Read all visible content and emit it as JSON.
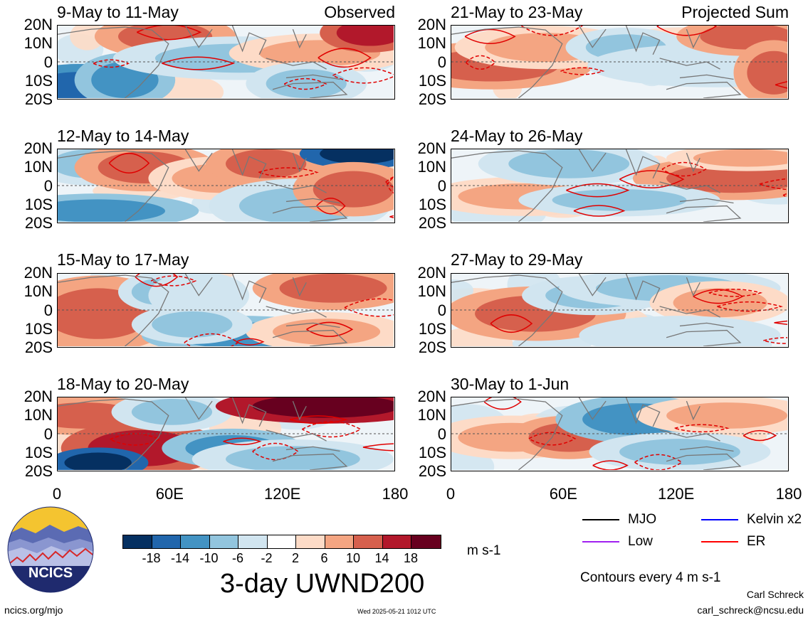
{
  "panels": [
    {
      "title": "9-May to 11-May",
      "corner_label": "Observed"
    },
    {
      "title": "21-May to 23-May",
      "corner_label": "Projected Sum"
    },
    {
      "title": "12-May to 14-May",
      "corner_label": ""
    },
    {
      "title": "24-May to 26-May",
      "corner_label": ""
    },
    {
      "title": "15-May to 17-May",
      "corner_label": ""
    },
    {
      "title": "27-May to 29-May",
      "corner_label": ""
    },
    {
      "title": "18-May to 20-May",
      "corner_label": ""
    },
    {
      "title": "30-May to 1-Jun",
      "corner_label": ""
    }
  ],
  "lat_labels": [
    "20N",
    "10N",
    "0",
    "10S",
    "20S"
  ],
  "lon_labels": [
    "0",
    "60E",
    "120E",
    "180"
  ],
  "colorbar": {
    "colors": [
      "#053061",
      "#2166ac",
      "#4393c3",
      "#92c5de",
      "#d1e5f0",
      "#ffffff",
      "#fddbc7",
      "#f4a582",
      "#d6604d",
      "#b2182b",
      "#67001f"
    ],
    "ticks": [
      "-18",
      "-14",
      "-10",
      "-6",
      "-2",
      "2",
      "6",
      "10",
      "14",
      "18"
    ]
  },
  "units": "m s-1",
  "main_title": "3-day UWND200",
  "legend": {
    "items": [
      {
        "label": "MJO",
        "color": "#000000"
      },
      {
        "label": "Kelvin x2",
        "color": "#0000ff"
      },
      {
        "label": "Low",
        "color": "#a020f0"
      },
      {
        "label": "ER",
        "color": "#ff0000"
      }
    ],
    "contour_note": "Contours every 4 m s-1"
  },
  "footer": {
    "site": "ncics.org/mjo",
    "timestamp": "Wed 2025-05-21 1012 UTC",
    "author": "Carl Schreck",
    "email": "carl_schreck@ncsu.edu"
  },
  "logo": {
    "text": "NCICS"
  },
  "chart_data": {
    "type": "heatmap",
    "variable": "3-day UWND200",
    "units": "m s-1",
    "x_range": [
      0,
      180
    ],
    "y_range": [
      -20,
      20
    ],
    "x_ticks": [
      "0",
      "60E",
      "120E",
      "180"
    ],
    "y_ticks": [
      "20N",
      "10N",
      "0",
      "10S",
      "20S"
    ],
    "color_levels": [
      -18,
      -14,
      -10,
      -6,
      -2,
      2,
      6,
      10,
      14,
      18
    ],
    "contour_interval": 4,
    "panels": [
      "9-May to 11-May",
      "21-May to 23-May",
      "12-May to 14-May",
      "24-May to 26-May",
      "15-May to 17-May",
      "27-May to 29-May",
      "18-May to 20-May",
      "30-May to 1-Jun"
    ]
  }
}
